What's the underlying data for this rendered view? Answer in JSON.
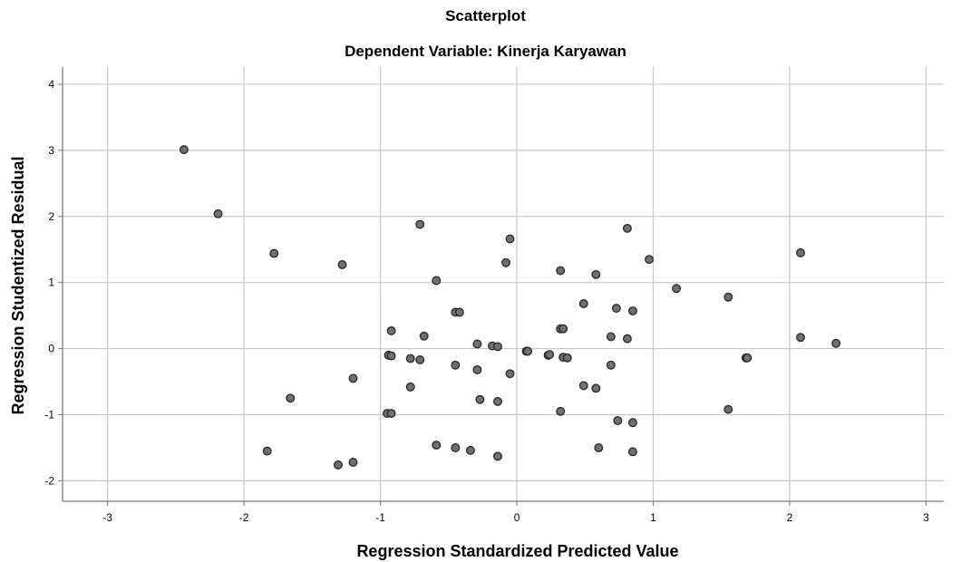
{
  "chart_data": {
    "type": "scatter",
    "title": "Scatterplot",
    "subtitle": "Dependent Variable: Kinerja Karyawan",
    "xlabel": "Regression Standardized Predicted Value",
    "ylabel": "Regression Studentized Residual",
    "xlim": [
      -3.33,
      3.13
    ],
    "ylim": [
      -2.31,
      4.26
    ],
    "xticks": [
      -3,
      -2,
      -1,
      0,
      1,
      2,
      3
    ],
    "yticks": [
      -2,
      -1,
      0,
      1,
      2,
      3,
      4
    ],
    "grid": true,
    "marker_color": "#707070",
    "marker_edge": "#262626",
    "points": [
      [
        -2.44,
        3.01
      ],
      [
        -2.19,
        2.04
      ],
      [
        -1.78,
        1.44
      ],
      [
        -1.28,
        1.27
      ],
      [
        -1.83,
        -1.55
      ],
      [
        -1.66,
        -0.75
      ],
      [
        -1.31,
        -1.76
      ],
      [
        -1.2,
        -1.72
      ],
      [
        -1.2,
        -0.45
      ],
      [
        -0.94,
        -0.1
      ],
      [
        -0.92,
        0.27
      ],
      [
        -0.92,
        -0.11
      ],
      [
        -0.95,
        -0.98
      ],
      [
        -0.92,
        -0.98
      ],
      [
        -0.78,
        -0.15
      ],
      [
        -0.78,
        -0.58
      ],
      [
        -0.71,
        1.88
      ],
      [
        -0.71,
        -0.17
      ],
      [
        -0.68,
        0.19
      ],
      [
        -0.59,
        1.03
      ],
      [
        -0.59,
        -1.46
      ],
      [
        -0.45,
        0.55
      ],
      [
        -0.42,
        0.55
      ],
      [
        -0.45,
        -0.25
      ],
      [
        -0.45,
        -1.5
      ],
      [
        -0.34,
        -1.54
      ],
      [
        -0.29,
        0.07
      ],
      [
        -0.29,
        -0.32
      ],
      [
        -0.27,
        -0.77
      ],
      [
        -0.18,
        0.04
      ],
      [
        -0.14,
        0.03
      ],
      [
        -0.14,
        -0.8
      ],
      [
        -0.14,
        -1.63
      ],
      [
        -0.08,
        1.3
      ],
      [
        -0.05,
        1.66
      ],
      [
        -0.05,
        -0.38
      ],
      [
        0.07,
        -0.04
      ],
      [
        0.08,
        -0.04
      ],
      [
        0.23,
        -0.1
      ],
      [
        0.24,
        -0.09
      ],
      [
        0.32,
        1.18
      ],
      [
        0.32,
        0.3
      ],
      [
        0.34,
        0.3
      ],
      [
        0.34,
        -0.13
      ],
      [
        0.37,
        -0.14
      ],
      [
        0.32,
        -0.95
      ],
      [
        0.49,
        0.68
      ],
      [
        0.49,
        -0.56
      ],
      [
        0.58,
        1.12
      ],
      [
        0.58,
        -0.6
      ],
      [
        0.6,
        -1.5
      ],
      [
        0.69,
        0.18
      ],
      [
        0.69,
        -0.25
      ],
      [
        0.73,
        0.61
      ],
      [
        0.74,
        -1.09
      ],
      [
        0.81,
        1.82
      ],
      [
        0.81,
        0.15
      ],
      [
        0.85,
        0.57
      ],
      [
        0.85,
        -1.12
      ],
      [
        0.85,
        -1.56
      ],
      [
        0.97,
        1.35
      ],
      [
        1.17,
        0.91
      ],
      [
        1.55,
        0.78
      ],
      [
        1.55,
        -0.92
      ],
      [
        1.68,
        -0.14
      ],
      [
        1.69,
        -0.14
      ],
      [
        2.08,
        1.45
      ],
      [
        2.08,
        0.17
      ],
      [
        2.34,
        0.08
      ]
    ]
  }
}
